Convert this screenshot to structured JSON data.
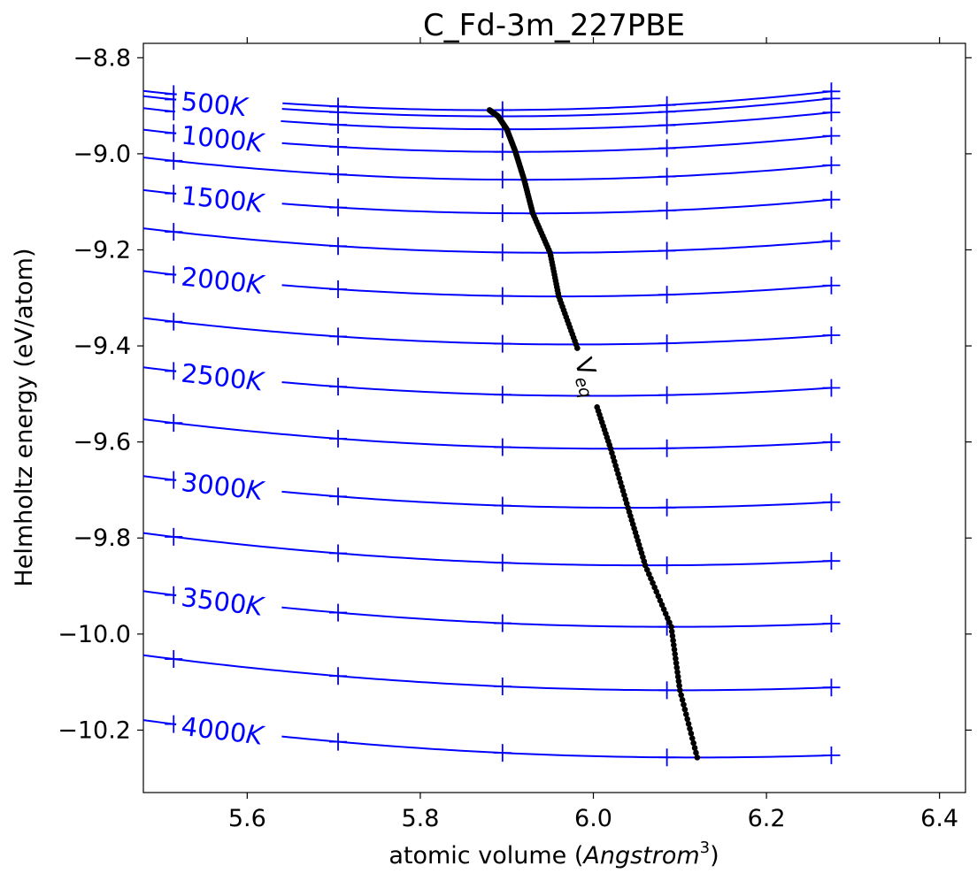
{
  "chart_data": {
    "type": "line",
    "title": "C_Fd-3m_227PBE",
    "xlabel_prefix": "atomic volume (",
    "xlabel_unit": "Angstrom",
    "xlabel_unit_power": "3",
    "xlabel_suffix": ")",
    "ylabel": "Helmholtz energy (eV/atom)",
    "xlim": [
      5.48,
      6.43
    ],
    "ylim": [
      -10.33,
      -8.77
    ],
    "x_ticks": [
      5.6,
      5.8,
      6.0,
      6.2,
      6.4
    ],
    "x_tick_labels": [
      "5.6",
      "5.8",
      "6.0",
      "6.2",
      "6.4"
    ],
    "y_ticks": [
      -8.8,
      -9.0,
      -9.2,
      -9.4,
      -9.6,
      -9.8,
      -10.0,
      -10.2
    ],
    "y_tick_labels": [
      "−8.8",
      "−9.0",
      "−9.2",
      "−9.4",
      "−9.6",
      "−9.8",
      "−10.0",
      "−10.2"
    ],
    "grid": false,
    "line_color": "#0000ff",
    "eq_color": "#000000",
    "sample_volumes": [
      5.515,
      5.705,
      5.895,
      6.085,
      6.275
    ],
    "curve_x_range": [
      5.48,
      6.275
    ],
    "series": [
      {
        "v0": 5.88,
        "f0": -8.909,
        "k": 0.25
      },
      {
        "v0": 5.89,
        "f0": -8.922,
        "k": 0.25
      },
      {
        "v0": 5.9,
        "f0": -8.949,
        "k": 0.25
      },
      {
        "v0": 5.91,
        "f0": -8.996,
        "k": 0.25
      },
      {
        "v0": 5.92,
        "f0": -9.054,
        "k": 0.24
      },
      {
        "v0": 5.93,
        "f0": -9.124,
        "k": 0.24
      },
      {
        "v0": 5.95,
        "f0": -9.206,
        "k": 0.23
      },
      {
        "v0": 5.96,
        "f0": -9.297,
        "k": 0.23
      },
      {
        "v0": 5.98,
        "f0": -9.397,
        "k": 0.22
      },
      {
        "v0": 6.0,
        "f0": -9.504,
        "k": 0.22
      },
      {
        "v0": 6.02,
        "f0": -9.614,
        "k": 0.21
      },
      {
        "v0": 6.04,
        "f0": -9.737,
        "k": 0.21
      },
      {
        "v0": 6.06,
        "f0": -9.857,
        "k": 0.2
      },
      {
        "v0": 6.09,
        "f0": -9.985,
        "k": 0.2
      },
      {
        "v0": 6.1,
        "f0": -10.117,
        "k": 0.19
      },
      {
        "v0": 6.12,
        "f0": -10.257,
        "k": 0.19
      }
    ],
    "temperature_labels": [
      {
        "text": "500",
        "unit": "K",
        "series_index": 1
      },
      {
        "text": "1000",
        "unit": "K",
        "series_index": 3
      },
      {
        "text": "1500",
        "unit": "K",
        "series_index": 5
      },
      {
        "text": "2000",
        "unit": "K",
        "series_index": 7
      },
      {
        "text": "2500",
        "unit": "K",
        "series_index": 9
      },
      {
        "text": "3000",
        "unit": "K",
        "series_index": 11
      },
      {
        "text": "3500",
        "unit": "K",
        "series_index": 13
      },
      {
        "text": "4000",
        "unit": "K",
        "series_index": 15
      }
    ],
    "temperature_label_x": 5.52,
    "equilibrium_label": {
      "main": "V",
      "sub": "eq"
    },
    "equilibrium_curve": {
      "points_per_segment": 14
    }
  }
}
